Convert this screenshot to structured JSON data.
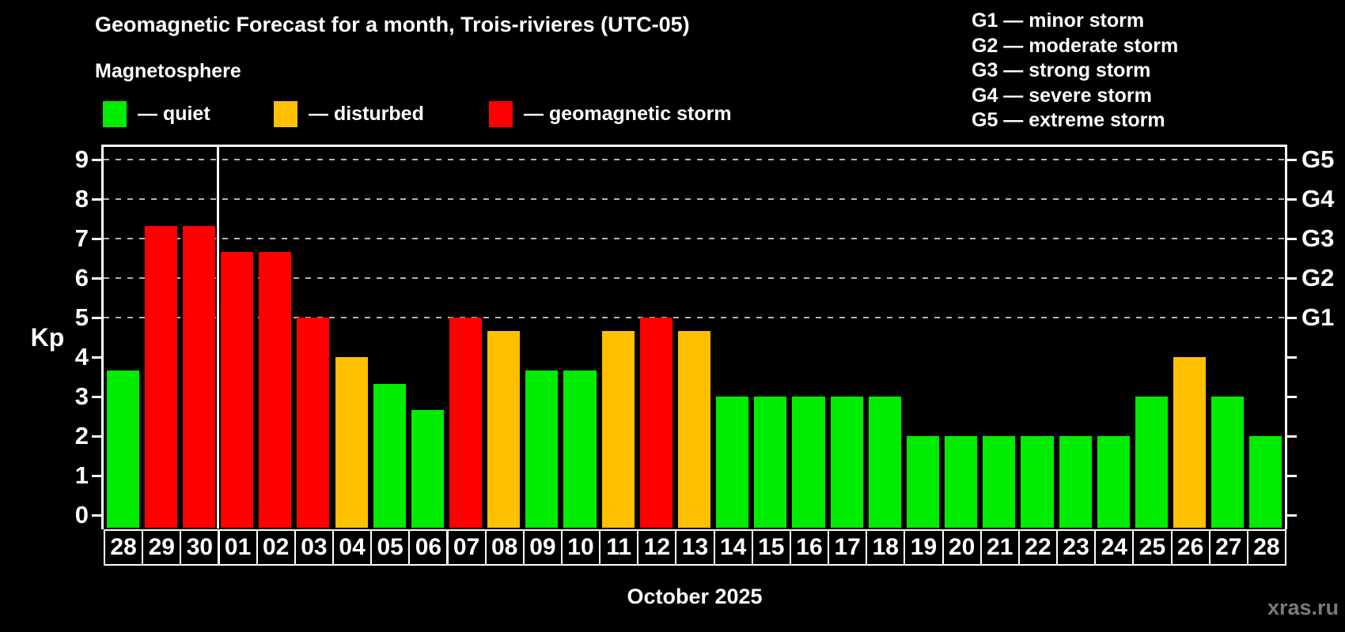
{
  "title": "Geomagnetic Forecast for a month, Trois-rivieres (UTC-05)",
  "subtitle": "Magnetosphere",
  "legend": {
    "items": [
      {
        "key": "quiet",
        "label": "— quiet",
        "color": "#00ec00"
      },
      {
        "key": "disturbed",
        "label": "— disturbed",
        "color": "#ffc000"
      },
      {
        "key": "storm",
        "label": "— geomagnetic storm",
        "color": "#ff0000"
      }
    ]
  },
  "g_legend": [
    "G1 — minor storm",
    "G2 — moderate storm",
    "G3 — strong storm",
    "G4 — severe storm",
    "G5 — extreme storm"
  ],
  "axis": {
    "y_label": "Kp",
    "y_ticks": [
      0,
      1,
      2,
      3,
      4,
      5,
      6,
      7,
      8,
      9
    ],
    "right_labels": [
      {
        "kp": 5,
        "label": "G1"
      },
      {
        "kp": 6,
        "label": "G2"
      },
      {
        "kp": 7,
        "label": "G3"
      },
      {
        "kp": 8,
        "label": "G4"
      },
      {
        "kp": 9,
        "label": "G5"
      }
    ]
  },
  "x_label": "October 2025",
  "watermark": "xras.ru",
  "chart_data": {
    "type": "bar",
    "title": "Geomagnetic Forecast for a month, Trois-rivieres (UTC-05)",
    "xlabel": "October 2025",
    "ylabel": "Kp",
    "ylim": [
      0,
      9
    ],
    "grid_kp_levels": [
      5,
      6,
      7,
      8,
      9
    ],
    "month_boundary_after_index": 2,
    "categories": [
      "28",
      "29",
      "30",
      "01",
      "02",
      "03",
      "04",
      "05",
      "06",
      "07",
      "08",
      "09",
      "10",
      "11",
      "12",
      "13",
      "14",
      "15",
      "16",
      "17",
      "18",
      "19",
      "20",
      "21",
      "22",
      "23",
      "24",
      "25",
      "26",
      "27",
      "28"
    ],
    "values": [
      3.67,
      7.33,
      7.33,
      6.67,
      6.67,
      5,
      4,
      3.33,
      2.67,
      5,
      4.67,
      3.67,
      3.67,
      4.67,
      5,
      4.67,
      3,
      3,
      3,
      3,
      3,
      2,
      2,
      2,
      2,
      2,
      2,
      3,
      4,
      3,
      2
    ],
    "statuses": [
      "quiet",
      "storm",
      "storm",
      "storm",
      "storm",
      "storm",
      "disturbed",
      "quiet",
      "quiet",
      "storm",
      "disturbed",
      "quiet",
      "quiet",
      "disturbed",
      "storm",
      "disturbed",
      "quiet",
      "quiet",
      "quiet",
      "quiet",
      "quiet",
      "quiet",
      "quiet",
      "quiet",
      "quiet",
      "quiet",
      "quiet",
      "quiet",
      "disturbed",
      "quiet",
      "quiet"
    ]
  }
}
